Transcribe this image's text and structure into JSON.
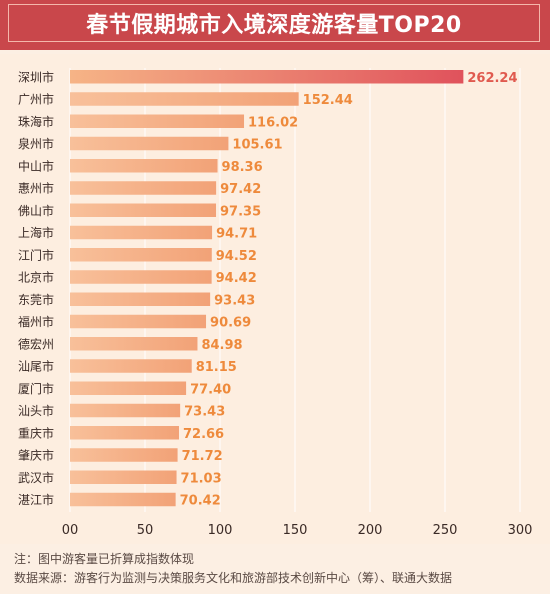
{
  "chart_data": {
    "type": "bar",
    "orientation": "horizontal",
    "title": "春节假期城市入境深度游客量TOP20",
    "categories": [
      "深圳市",
      "广州市",
      "珠海市",
      "泉州市",
      "中山市",
      "惠州市",
      "佛山市",
      "上海市",
      "江门市",
      "北京市",
      "东莞市",
      "福州市",
      "德宏州",
      "汕尾市",
      "厦门市",
      "汕头市",
      "重庆市",
      "肇庆市",
      "武汉市",
      "湛江市"
    ],
    "values": [
      262.24,
      152.44,
      116.02,
      105.61,
      98.36,
      97.42,
      97.35,
      94.71,
      94.52,
      94.42,
      93.43,
      90.69,
      84.98,
      81.15,
      77.4,
      73.43,
      72.66,
      71.72,
      71.03,
      70.42
    ],
    "value_labels": [
      "262.24",
      "152.44",
      "116.02",
      "105.61",
      "98.36",
      "97.42",
      "97.35",
      "94.71",
      "94.52",
      "94.42",
      "93.43",
      "90.69",
      "84.98",
      "81.15",
      "77.40",
      "73.43",
      "72.66",
      "71.72",
      "71.03",
      "70.42"
    ],
    "xlim": [
      0,
      300
    ],
    "xticks": [
      "00",
      "50",
      "100",
      "150",
      "200",
      "250",
      "300"
    ],
    "xtick_values": [
      0,
      50,
      100,
      150,
      200,
      250,
      300
    ],
    "grid": true,
    "colors": {
      "bar_light": "#f6b486",
      "bar_dark": "#e0525c",
      "label": "#ee8a3c",
      "top_label": "#e05a4f",
      "grid": "#ffffff",
      "category": "#3a2a26"
    }
  },
  "notes": {
    "note": "注：图中游客量已折算成指数体现",
    "source": "数据来源：游客行为监测与决策服务文化和旅游部技术创新中心（筹）、联通大数据"
  }
}
